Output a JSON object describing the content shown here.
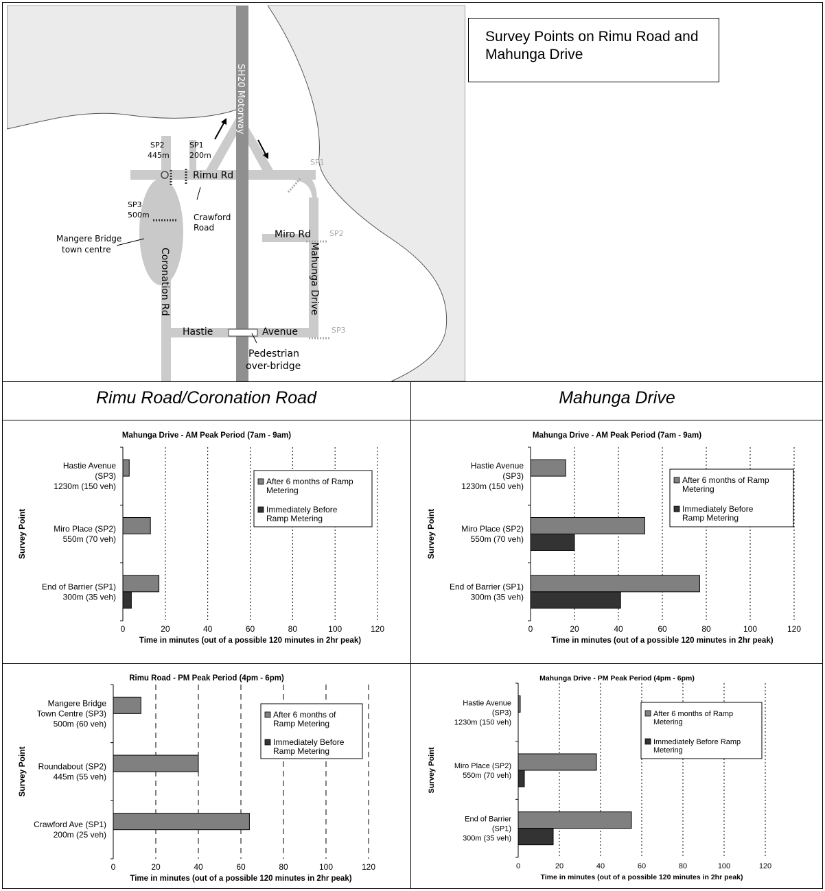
{
  "map": {
    "title": "Survey Points on Rimu Road and Mahunga Drive",
    "labels": {
      "motorway": "SH20 Motorway",
      "rimu_rd": "Rimu Rd",
      "miro_rd": "Miro Rd",
      "coronation_rd": "Coronation Rd",
      "mahunga_drive": "Mahunga Drive",
      "hastie": "Hastie",
      "avenue": "Avenue",
      "crawford_1": "Crawford",
      "crawford_2": "Road",
      "mangere_1": "Mangere Bridge",
      "mangere_2": "town centre",
      "pedestrian_1": "Pedestrian",
      "pedestrian_2": "over-bridge",
      "west_sp2_1": "SP2",
      "west_sp2_2": "445m",
      "west_sp1_1": "SP1",
      "west_sp1_2": "200m",
      "west_sp3_1": "SP3",
      "west_sp3_2": "500m",
      "east_sp1": "SP1",
      "east_sp2": "SP2",
      "east_sp3": "SP3"
    },
    "colors": {
      "land": "#ebebeb",
      "road": "#cbcbcb",
      "motorway": "#8f8f8f",
      "town": "#c9c9c9"
    }
  },
  "sections": {
    "left": "Rimu Road/Coronation Road",
    "right": "Mahunga Drive"
  },
  "chart_data": [
    {
      "type": "bar",
      "orientation": "horizontal",
      "title": "Mahunga Drive - AM Peak Period (7am - 9am)",
      "xlabel": "Time in minutes (out of a possible 120 minutes in 2hr peak)",
      "ylabel": "Survey Point",
      "xlim": [
        0,
        120
      ],
      "xticks": [
        "0",
        "20",
        "40",
        "60",
        "80",
        "100",
        "120"
      ],
      "grid": "vertical dotted",
      "legend_position": "top-right",
      "categories": [
        [
          "Hastie Avenue",
          "(SP3)",
          "1230m (150 veh)"
        ],
        [
          "Miro Place (SP2)",
          "550m (70 veh)"
        ],
        [
          "End of Barrier (SP1)",
          "300m (35 veh)"
        ]
      ],
      "series": [
        {
          "name": [
            "After 6 months of Ramp",
            "Metering"
          ],
          "color": "#808080",
          "values": [
            3,
            13,
            17
          ]
        },
        {
          "name": [
            "Immediately Before",
            "Ramp Metering"
          ],
          "color": "#333333",
          "values": [
            0,
            0,
            4
          ]
        }
      ]
    },
    {
      "type": "bar",
      "orientation": "horizontal",
      "title": "Mahunga Drive - AM Peak Period (7am - 9am)",
      "xlabel": "Time in minutes (out of a possible 120 minutes in 2hr peak)",
      "ylabel": "Survey Point",
      "xlim": [
        0,
        120
      ],
      "xticks": [
        "0",
        "20",
        "40",
        "60",
        "80",
        "100",
        "120"
      ],
      "grid": "vertical dotted",
      "legend_position": "top-right",
      "categories": [
        [
          "Hastie Avenue",
          "(SP3)",
          "1230m (150 veh)"
        ],
        [
          "Miro Place (SP2)",
          "550m (70 veh)"
        ],
        [
          "End of Barrier (SP1)",
          "300m (35 veh)"
        ]
      ],
      "series": [
        {
          "name": [
            "After 6 months of Ramp",
            "Metering"
          ],
          "color": "#808080",
          "values": [
            16,
            52,
            77
          ]
        },
        {
          "name": [
            "Immediately Before",
            "Ramp Metering"
          ],
          "color": "#333333",
          "values": [
            0,
            20,
            41
          ]
        }
      ]
    },
    {
      "type": "bar",
      "orientation": "horizontal",
      "title": "Rimu Road - PM Peak Period (4pm - 6pm)",
      "xlabel": "Time in minutes (out of a possible 120 minutes in 2hr peak)",
      "ylabel": "Survey Point",
      "xlim": [
        0,
        120
      ],
      "xticks": [
        "0",
        "20",
        "40",
        "60",
        "80",
        "100",
        "120"
      ],
      "grid": "vertical dashed",
      "legend_position": "top-right",
      "categories": [
        [
          "Mangere Bridge",
          "Town Centre (SP3)",
          "500m (60 veh)"
        ],
        [
          "Roundabout (SP2)",
          "445m (55 veh)"
        ],
        [
          "Crawford Ave (SP1)",
          "200m (25 veh)"
        ]
      ],
      "series": [
        {
          "name": [
            "After 6 months of",
            "Ramp Metering"
          ],
          "color": "#808080",
          "values": [
            13,
            40,
            64
          ]
        },
        {
          "name": [
            "Immediately Before",
            "Ramp Metering"
          ],
          "color": "#333333",
          "values": [
            0,
            0,
            0
          ]
        }
      ]
    },
    {
      "type": "bar",
      "orientation": "horizontal",
      "title": "Mahunga Drive - PM Peak Period (4pm - 6pm)",
      "xlabel": "Time in minutes (out of a possible 120 minutes in 2hr peak)",
      "ylabel": "Survey Point",
      "xlim": [
        0,
        120
      ],
      "xticks": [
        "0",
        "20",
        "40",
        "60",
        "80",
        "100",
        "120"
      ],
      "grid": "vertical dotted",
      "legend_position": "top-right",
      "categories": [
        [
          "Hastie Avenue",
          "(SP3)",
          "1230m (150 veh)"
        ],
        [
          "Miro Place (SP2)",
          "550m (70 veh)"
        ],
        [
          "End of Barrier",
          "(SP1)",
          "300m (35 veh)"
        ]
      ],
      "series": [
        {
          "name": [
            "After 6 months of Ramp",
            "Metering"
          ],
          "color": "#808080",
          "values": [
            1,
            38,
            55
          ]
        },
        {
          "name": [
            "Immediately Before Ramp",
            "Metering"
          ],
          "color": "#333333",
          "values": [
            0,
            3,
            17
          ]
        }
      ]
    }
  ]
}
